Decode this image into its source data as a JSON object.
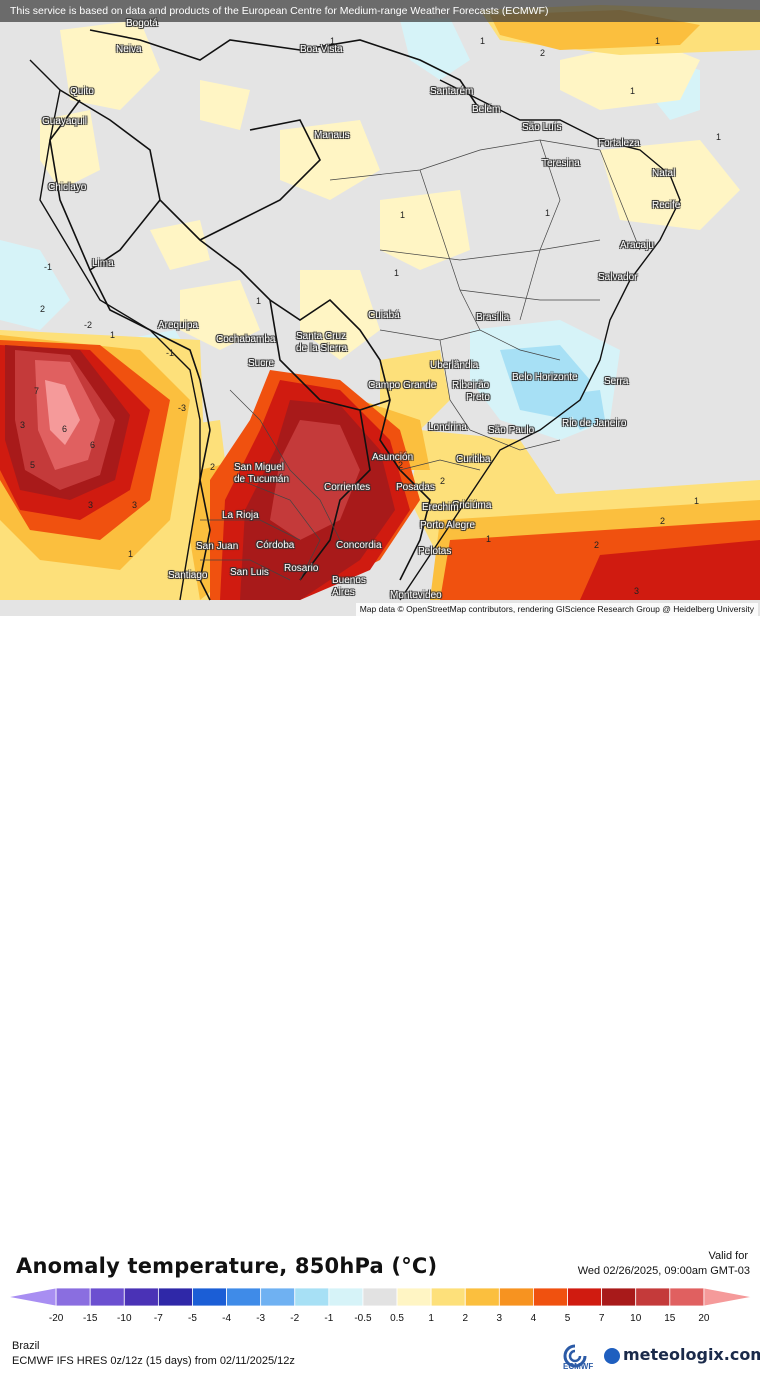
{
  "banner": "This service is based on data and products of the European Centre for Medium-range Weather Forecasts (ECMWF)",
  "attribution": "Map data © OpenStreetMap contributors, rendering GIScience Research Group @ Heidelberg University",
  "title": "Anomaly temperature, 850hPa (°C)",
  "valid_label": "Valid for",
  "valid_time": "Wed 02/26/2025, 09:00am GMT-03",
  "region": "Brazil",
  "model_run": "ECMWF IFS HRES 0z/12z (15 days) from  02/11/2025/12z",
  "logos": {
    "ecmwf": "ECMWF",
    "meteologix": "meteologix.com"
  },
  "colorbar": {
    "ticks": [
      "-20",
      "-15",
      "-10",
      "-7",
      "-5",
      "-4",
      "-3",
      "-2",
      "-1",
      "-0.5",
      "0.5",
      "1",
      "2",
      "3",
      "4",
      "5",
      "7",
      "10",
      "15",
      "20"
    ],
    "colors": [
      "#a88ef2",
      "#8a6ee0",
      "#6b4fd0",
      "#4a32b6",
      "#2f28a8",
      "#1b5ed6",
      "#3f8be8",
      "#6fb1f2",
      "#a7e0f5",
      "#d6f3f8",
      "#e2e2e2",
      "#fff5c4",
      "#fde07a",
      "#fbbf3e",
      "#f79320",
      "#f0510f",
      "#d01b10",
      "#a81a1a",
      "#c43a3a",
      "#e06060",
      "#f59a9a"
    ]
  },
  "cities": [
    {
      "name": "Bogotá"
    },
    {
      "name": "Neiva"
    },
    {
      "name": "Boa Vista"
    },
    {
      "name": "Quito"
    },
    {
      "name": "Guayaquil"
    },
    {
      "name": "Santarém"
    },
    {
      "name": "Belém"
    },
    {
      "name": "São Luís"
    },
    {
      "name": "Manaus"
    },
    {
      "name": "Fortaleza"
    },
    {
      "name": "Teresina"
    },
    {
      "name": "Natal"
    },
    {
      "name": "Chiclayo"
    },
    {
      "name": "Recife"
    },
    {
      "name": "Aracaju"
    },
    {
      "name": "Lima"
    },
    {
      "name": "Salvador"
    },
    {
      "name": "Cuiabá"
    },
    {
      "name": "Brasília"
    },
    {
      "name": "Arequipa"
    },
    {
      "name": "Cochabamba"
    },
    {
      "name": "Santa Cruz"
    },
    {
      "name": "de la Sierra"
    },
    {
      "name": "Sucre"
    },
    {
      "name": "Uberlândia"
    },
    {
      "name": "Belo Horizonte"
    },
    {
      "name": "Serra"
    },
    {
      "name": "Campo Grande"
    },
    {
      "name": "Ribeirão"
    },
    {
      "name": "Preto"
    },
    {
      "name": "Rio de Janeiro"
    },
    {
      "name": "Londrina"
    },
    {
      "name": "São Paulo"
    },
    {
      "name": "Asunción"
    },
    {
      "name": "Curitiba"
    },
    {
      "name": "San Miguel"
    },
    {
      "name": "de Tucumán"
    },
    {
      "name": "Corrientes"
    },
    {
      "name": "Posadas"
    },
    {
      "name": "Criciúma"
    },
    {
      "name": "Erechim"
    },
    {
      "name": "La Rioja"
    },
    {
      "name": "Porto Alegre"
    },
    {
      "name": "Córdoba"
    },
    {
      "name": "San Juan"
    },
    {
      "name": "Concordia"
    },
    {
      "name": "Pelotas"
    },
    {
      "name": "Santiago"
    },
    {
      "name": "San Luis"
    },
    {
      "name": "Rosario"
    },
    {
      "name": "Buenos"
    },
    {
      "name": "Aires"
    },
    {
      "name": "Montevideo"
    }
  ],
  "contour_labels": [
    "1",
    "2",
    "1",
    "1",
    "1",
    "1",
    "1",
    "1",
    "1",
    "-1",
    "-2",
    "-1",
    "1",
    "7",
    "6",
    "5",
    "3",
    "3",
    "6",
    "3",
    "-3",
    "2",
    "1",
    "2",
    "2",
    "1",
    "2",
    "2",
    "3",
    "1",
    "1",
    "2"
  ]
}
